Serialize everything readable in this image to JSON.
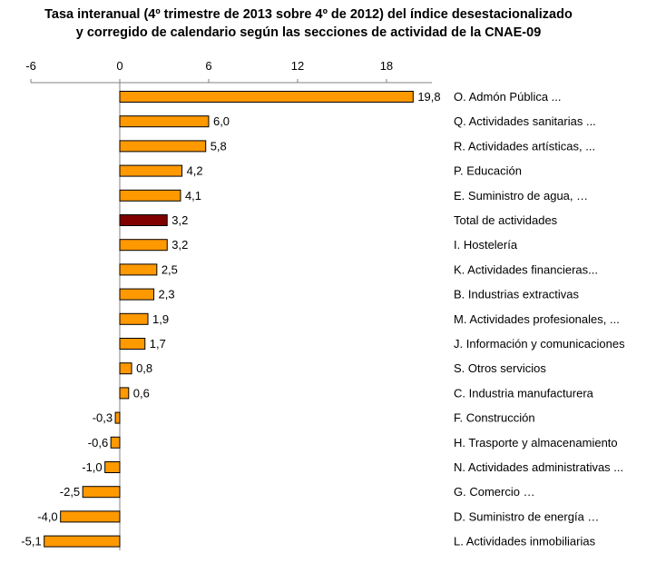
{
  "chart_data": {
    "type": "bar",
    "orientation": "horizontal",
    "title_line1": "Tasa interanual (4º trimestre de 2013 sobre 4º de 2012) del índice desestacionalizado",
    "title_line2": "y corregido de calendario según las secciones de actividad  de la CNAE-09",
    "xlim": [
      -6,
      21
    ],
    "xticks": [
      -6,
      0,
      6,
      12,
      18
    ],
    "xtick_labels": [
      "-6",
      "0",
      "6",
      "12",
      "18"
    ],
    "axis_position": "top",
    "grid": false,
    "categories": [
      "O. Admón Pública ...",
      "Q. Actividades sanitarias ...",
      "R. Actividades artísticas, ...",
      "P. Educación",
      "E. Suministro de agua, …",
      "Total de actividades",
      "I. Hostelería",
      "K. Actividades financieras...",
      "B. Industrias extractivas",
      "M. Actividades profesionales, ...",
      "J. Información y comunicaciones",
      "S. Otros servicios",
      "C. Industria manufacturera",
      "F. Construcción",
      "H. Trasporte y almacenamiento",
      "N. Actividades administrativas ...",
      "G. Comercio …",
      "D. Suministro de energía …",
      "L. Actividades inmobiliarias"
    ],
    "values": [
      19.8,
      6.0,
      5.8,
      4.2,
      4.1,
      3.2,
      3.2,
      2.5,
      2.3,
      1.9,
      1.7,
      0.8,
      0.6,
      -0.3,
      -0.6,
      -1.0,
      -2.5,
      -4.0,
      -5.1
    ],
    "value_labels": [
      "19,8",
      "6,0",
      "5,8",
      "4,2",
      "4,1",
      "3,2",
      "3,2",
      "2,5",
      "2,3",
      "1,9",
      "1,7",
      "0,8",
      "0,6",
      "-0,3",
      "-0,6",
      "-1,0",
      "-2,5",
      "-4,0",
      "-5,1"
    ],
    "highlight_index": 5,
    "colors": {
      "bar": "#FF9900",
      "highlight": "#800000",
      "bar_edge": "#000000",
      "axis": "#808080"
    }
  }
}
